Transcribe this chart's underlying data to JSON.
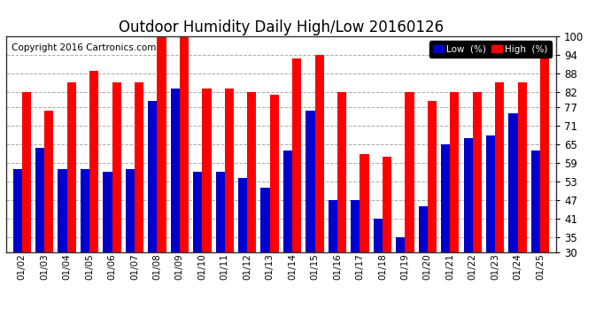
{
  "title": "Outdoor Humidity Daily High/Low 20160126",
  "copyright": "Copyright 2016 Cartronics.com",
  "categories": [
    "01/02",
    "01/03",
    "01/04",
    "01/05",
    "01/06",
    "01/07",
    "01/08",
    "01/09",
    "01/10",
    "01/11",
    "01/12",
    "01/13",
    "01/14",
    "01/15",
    "01/16",
    "01/17",
    "01/18",
    "01/19",
    "01/20",
    "01/21",
    "01/22",
    "01/23",
    "01/24",
    "01/25"
  ],
  "high_values": [
    82,
    76,
    85,
    89,
    85,
    85,
    100,
    100,
    83,
    83,
    82,
    81,
    93,
    94,
    82,
    62,
    61,
    82,
    79,
    82,
    82,
    85,
    85,
    95
  ],
  "low_values": [
    57,
    64,
    57,
    57,
    56,
    57,
    79,
    83,
    56,
    56,
    54,
    51,
    63,
    76,
    47,
    47,
    41,
    35,
    45,
    65,
    67,
    68,
    75,
    63
  ],
  "high_color": "#ff0000",
  "low_color": "#0000cc",
  "bg_color": "#ffffff",
  "plot_bg_color": "#ffffff",
  "ylim_min": 30,
  "ylim_max": 100,
  "yticks": [
    30,
    35,
    41,
    47,
    53,
    59,
    65,
    71,
    77,
    82,
    88,
    94,
    100
  ],
  "grid_color": "#aaaaaa",
  "title_fontsize": 12,
  "copyright_fontsize": 7.5,
  "legend_low_label": "Low  (%)",
  "legend_high_label": "High  (%)",
  "bar_bottom": 30
}
